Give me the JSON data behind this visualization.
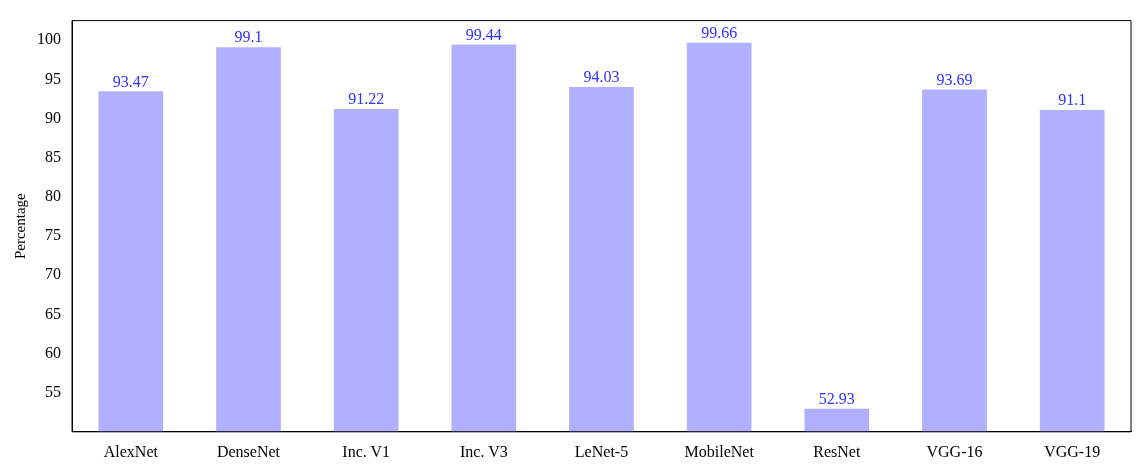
{
  "chart_data": {
    "type": "bar",
    "ylabel": "Percentage",
    "categories": [
      "AlexNet",
      "DenseNet",
      "Inc. V1",
      "Inc. V3",
      "LeNet-5",
      "MobileNet",
      "ResNet",
      "VGG-16",
      "VGG-19"
    ],
    "values": [
      93.47,
      99.1,
      91.22,
      99.44,
      94.03,
      99.66,
      52.93,
      93.69,
      91.1
    ],
    "color": "#b0b0ff",
    "ylim": [
      50,
      102.5
    ],
    "yticks": [
      55,
      60,
      65,
      70,
      75,
      80,
      85,
      90,
      95,
      100
    ],
    "grid": false,
    "legend": false,
    "data_labels": true
  }
}
